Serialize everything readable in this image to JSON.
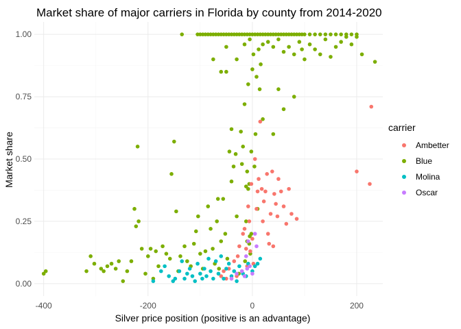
{
  "chart_data": {
    "type": "scatter",
    "title": "Market share of major carriers in Florida by county from 2014-2020",
    "xlabel": "Silver price position (positive is an advantage)",
    "ylabel": "Market share",
    "xlim": [
      -418,
      250
    ],
    "ylim": [
      -0.05,
      1.05
    ],
    "x_ticks": [
      -400,
      -200,
      0,
      200
    ],
    "x_tick_labels": [
      "-400",
      "-200",
      "0",
      "200"
    ],
    "y_ticks": [
      0,
      0.25,
      0.5,
      0.75,
      1
    ],
    "y_tick_labels": [
      "0.00",
      "0.25",
      "0.50",
      "0.75",
      "1.00"
    ],
    "grid": true,
    "legend": {
      "title": "carrier",
      "position": "right",
      "entries": [
        {
          "label": "Ambetter",
          "color": "#F8766D"
        },
        {
          "label": "Blue",
          "color": "#7CAE00"
        },
        {
          "label": "Molina",
          "color": "#00BFC4"
        },
        {
          "label": "Oscar",
          "color": "#C77CFF"
        }
      ]
    },
    "series": [
      {
        "name": "Blue",
        "color": "#7CAE00",
        "points": [
          [
            -400,
            0.04
          ],
          [
            -396,
            0.05
          ],
          [
            -318,
            0.05
          ],
          [
            -310,
            0.11
          ],
          [
            -303,
            0.08
          ],
          [
            -290,
            0.06
          ],
          [
            -285,
            0.05
          ],
          [
            -278,
            0.07
          ],
          [
            -270,
            0.08
          ],
          [
            -262,
            0.06
          ],
          [
            -256,
            0.09
          ],
          [
            -248,
            0.01
          ],
          [
            -240,
            0.05
          ],
          [
            -232,
            0.09
          ],
          [
            -226,
            0.3
          ],
          [
            -223,
            0.23
          ],
          [
            -220,
            0.55
          ],
          [
            -218,
            0.25
          ],
          [
            -212,
            0.14
          ],
          [
            -205,
            0.04
          ],
          [
            -200,
            0.11
          ],
          [
            -195,
            0.14
          ],
          [
            -190,
            0.02
          ],
          [
            -185,
            0.13
          ],
          [
            -180,
            0.07
          ],
          [
            -172,
            0.15
          ],
          [
            -165,
            0.12
          ],
          [
            -158,
            0.1
          ],
          [
            -155,
            0.44
          ],
          [
            -150,
            0.57
          ],
          [
            -146,
            0.29
          ],
          [
            -142,
            0.05
          ],
          [
            -138,
            0.11
          ],
          [
            -130,
            0.15
          ],
          [
            -125,
            0.09
          ],
          [
            -118,
            0.07
          ],
          [
            -112,
            0.16
          ],
          [
            -108,
            0.21
          ],
          [
            -104,
            0.27
          ],
          [
            -100,
            0.12
          ],
          [
            -95,
            0.06
          ],
          [
            -90,
            0.13
          ],
          [
            -85,
            0.31
          ],
          [
            -80,
            0.22
          ],
          [
            -76,
            0.14
          ],
          [
            -72,
            0.08
          ],
          [
            -68,
            0.25
          ],
          [
            -66,
            0.34
          ],
          [
            -64,
            0.06
          ],
          [
            -60,
            0.17
          ],
          [
            -56,
            0.34
          ],
          [
            -52,
            0.2
          ],
          [
            -48,
            0.1
          ],
          [
            -44,
            0.53
          ],
          [
            -40,
            0.41
          ],
          [
            -36,
            0.47
          ],
          [
            -32,
            0.52
          ],
          [
            -30,
            0.27
          ],
          [
            -26,
            0.04
          ],
          [
            -22,
            0.61
          ],
          [
            -20,
            0.48
          ],
          [
            -18,
            0.55
          ],
          [
            -15,
            0.72
          ],
          [
            -12,
            0.39
          ],
          [
            -10,
            0.45
          ],
          [
            -8,
            0.8
          ],
          [
            -6,
            0.16
          ],
          [
            -4,
            0.12
          ],
          [
            -2,
            0.53
          ],
          [
            0,
            0.86
          ],
          [
            2,
            0.92
          ],
          [
            4,
            0.47
          ],
          [
            6,
            0.6
          ],
          [
            8,
            0.83
          ],
          [
            10,
            0.3
          ],
          [
            12,
            0.94
          ],
          [
            14,
            0.78
          ],
          [
            16,
            0.88
          ],
          [
            -135,
            1.0
          ],
          [
            -105,
            1.0
          ],
          [
            -100,
            1.0
          ],
          [
            -95,
            1.0
          ],
          [
            -90,
            1.0
          ],
          [
            -85,
            1.0
          ],
          [
            -80,
            1.0
          ],
          [
            -75,
            1.0
          ],
          [
            -70,
            1.0
          ],
          [
            -65,
            1.0
          ],
          [
            -60,
            1.0
          ],
          [
            -55,
            1.0
          ],
          [
            -50,
            1.0
          ],
          [
            -45,
            1.0
          ],
          [
            -40,
            1.0
          ],
          [
            -35,
            1.0
          ],
          [
            -30,
            1.0
          ],
          [
            -25,
            1.0
          ],
          [
            -20,
            1.0
          ],
          [
            -15,
            1.0
          ],
          [
            -10,
            1.0
          ],
          [
            -5,
            1.0
          ],
          [
            0,
            1.0
          ],
          [
            5,
            1.0
          ],
          [
            10,
            1.0
          ],
          [
            15,
            1.0
          ],
          [
            20,
            1.0
          ],
          [
            25,
            1.0
          ],
          [
            30,
            1.0
          ],
          [
            35,
            1.0
          ],
          [
            40,
            1.0
          ],
          [
            45,
            1.0
          ],
          [
            50,
            1.0
          ],
          [
            55,
            1.0
          ],
          [
            60,
            1.0
          ],
          [
            65,
            1.0
          ],
          [
            70,
            1.0
          ],
          [
            75,
            1.0
          ],
          [
            80,
            1.0
          ],
          [
            85,
            1.0
          ],
          [
            90,
            1.0
          ],
          [
            95,
            1.0
          ],
          [
            100,
            1.0
          ],
          [
            110,
            1.0
          ],
          [
            120,
            1.0
          ],
          [
            130,
            1.0
          ],
          [
            140,
            1.0
          ],
          [
            150,
            1.0
          ],
          [
            160,
            1.0
          ],
          [
            170,
            1.0
          ],
          [
            180,
            1.0
          ],
          [
            190,
            1.0
          ],
          [
            200,
            1.0
          ],
          [
            -75,
            0.9
          ],
          [
            -60,
            0.85
          ],
          [
            -50,
            0.95
          ],
          [
            -30,
            0.9
          ],
          [
            -15,
            0.96
          ],
          [
            -5,
            0.98
          ],
          [
            20,
            0.96
          ],
          [
            30,
            0.97
          ],
          [
            40,
            0.95
          ],
          [
            50,
            0.98
          ],
          [
            60,
            0.93
          ],
          [
            70,
            0.95
          ],
          [
            80,
            0.92
          ],
          [
            90,
            0.97
          ],
          [
            95,
            0.94
          ],
          [
            100,
            0.9
          ],
          [
            110,
            0.96
          ],
          [
            120,
            0.94
          ],
          [
            130,
            0.92
          ],
          [
            140,
            0.98
          ],
          [
            150,
            0.91
          ],
          [
            160,
            0.95
          ],
          [
            170,
            0.97
          ],
          [
            180,
            0.99
          ],
          [
            190,
            0.96
          ],
          [
            200,
            0.99
          ],
          [
            210,
            0.92
          ],
          [
            235,
            0.89
          ],
          [
            -50,
            0.85
          ],
          [
            20,
            0.66
          ],
          [
            40,
            0.6
          ],
          [
            50,
            0.78
          ],
          [
            60,
            0.7
          ],
          [
            80,
            0.75
          ],
          [
            -40,
            0.62
          ],
          [
            -5,
            0.19
          ],
          [
            -2,
            0.2
          ],
          [
            -12,
            0.25
          ],
          [
            -10,
            0.17
          ],
          [
            -8,
            0.38
          ],
          [
            -6,
            0.4
          ],
          [
            -14,
            0.09
          ]
        ]
      },
      {
        "name": "Ambetter",
        "color": "#F8766D",
        "points": [
          [
            -60,
            0.03
          ],
          [
            -55,
            0.05
          ],
          [
            -50,
            0.02
          ],
          [
            -45,
            0.06
          ],
          [
            -40,
            0.02
          ],
          [
            -35,
            0.09
          ],
          [
            -30,
            0.03
          ],
          [
            -28,
            0.11
          ],
          [
            -25,
            0.15
          ],
          [
            -20,
            0.05
          ],
          [
            -18,
            0.2
          ],
          [
            -15,
            0.22
          ],
          [
            -12,
            0.14
          ],
          [
            -10,
            0.07
          ],
          [
            -8,
            0.31
          ],
          [
            -6,
            0.25
          ],
          [
            -4,
            0.13
          ],
          [
            -2,
            0.4
          ],
          [
            0,
            0.18
          ],
          [
            2,
            0.08
          ],
          [
            5,
            0.5
          ],
          [
            8,
            0.3
          ],
          [
            10,
            0.37
          ],
          [
            12,
            0.42
          ],
          [
            15,
            0.65
          ],
          [
            18,
            0.38
          ],
          [
            20,
            0.25
          ],
          [
            22,
            0.33
          ],
          [
            25,
            0.37
          ],
          [
            28,
            0.44
          ],
          [
            30,
            0.2
          ],
          [
            32,
            0.16
          ],
          [
            35,
            0.28
          ],
          [
            38,
            0.45
          ],
          [
            40,
            0.15
          ],
          [
            42,
            0.36
          ],
          [
            45,
            0.32
          ],
          [
            48,
            0.27
          ],
          [
            50,
            0.42
          ],
          [
            55,
            0.37
          ],
          [
            60,
            0.31
          ],
          [
            65,
            0.24
          ],
          [
            70,
            0.38
          ],
          [
            75,
            0.28
          ],
          [
            85,
            0.26
          ],
          [
            200,
            0.45
          ],
          [
            225,
            0.4
          ],
          [
            228,
            0.71
          ]
        ]
      },
      {
        "name": "Molina",
        "color": "#00BFC4",
        "points": [
          [
            -190,
            0.01
          ],
          [
            -175,
            0.05
          ],
          [
            -168,
            0.07
          ],
          [
            -160,
            0.03
          ],
          [
            -152,
            0.01
          ],
          [
            -148,
            0.02
          ],
          [
            -140,
            0.05
          ],
          [
            -135,
            0.09
          ],
          [
            -130,
            0.02
          ],
          [
            -125,
            0.04
          ],
          [
            -120,
            0.06
          ],
          [
            -115,
            0.03
          ],
          [
            -110,
            0.01
          ],
          [
            -105,
            0.08
          ],
          [
            -100,
            0.04
          ],
          [
            -96,
            0.02
          ],
          [
            -92,
            0.06
          ],
          [
            -88,
            0.03
          ],
          [
            -84,
            0.1
          ],
          [
            -80,
            0.05
          ],
          [
            -75,
            0.02
          ],
          [
            -70,
            0.09
          ],
          [
            -65,
            0.04
          ],
          [
            -60,
            0.11
          ],
          [
            -55,
            0.02
          ],
          [
            -50,
            0.06
          ],
          [
            -45,
            0.08
          ],
          [
            -40,
            0.03
          ],
          [
            -35,
            0.05
          ],
          [
            -30,
            0.01
          ],
          [
            -25,
            0.07
          ],
          [
            -18,
            0.04
          ],
          [
            -12,
            0.03
          ],
          [
            -8,
            0.08
          ],
          [
            0,
            0.05
          ],
          [
            5,
            0.07
          ],
          [
            10,
            0.08
          ],
          [
            15,
            0.1
          ]
        ]
      },
      {
        "name": "Oscar",
        "color": "#C77CFF",
        "points": [
          [
            -40,
            0.02
          ],
          [
            -30,
            0.04
          ],
          [
            -20,
            0.05
          ],
          [
            -15,
            0.03
          ],
          [
            -10,
            0.06
          ],
          [
            -5,
            0.07
          ],
          [
            0,
            0.04
          ],
          [
            5,
            0.2
          ],
          [
            -8,
            0.17
          ],
          [
            -12,
            0.11
          ],
          [
            8,
            0.15
          ]
        ]
      }
    ]
  }
}
